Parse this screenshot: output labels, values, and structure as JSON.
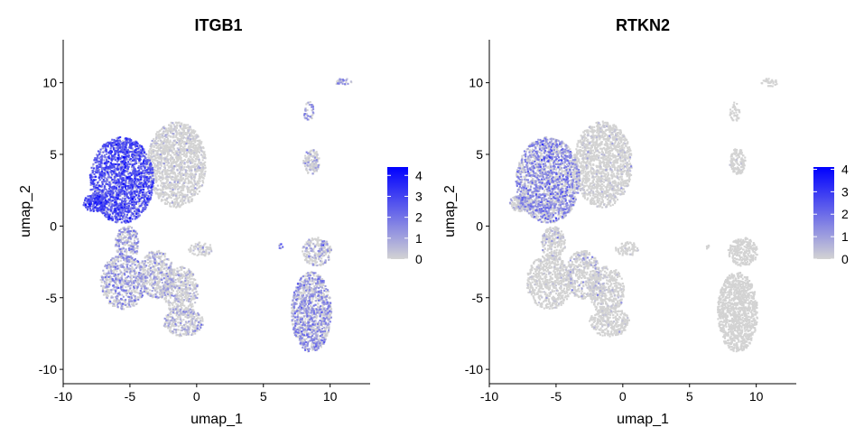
{
  "colors": {
    "low": "#d3d3d3",
    "high": "#0000ff",
    "axis": "#000000",
    "tick_text": "#4d4d4d"
  },
  "chart_data": [
    {
      "type": "scatter",
      "title": "ITGB1",
      "xlabel": "umap_1",
      "ylabel": "umap_2",
      "xlim": [
        -10,
        13
      ],
      "ylim": [
        -11,
        13
      ],
      "xticks": [
        -10,
        -5,
        0,
        5,
        10
      ],
      "yticks": [
        -10,
        -5,
        0,
        5,
        10
      ],
      "legend": {
        "position": "right",
        "ticks": [
          0,
          1,
          2,
          3,
          4
        ],
        "min": 0,
        "max": 4.4
      },
      "clusters": [
        {
          "name": "left-main-left",
          "cx": -5.6,
          "cy": 3.2,
          "rx": 2.4,
          "ry": 3.0,
          "n": 1900,
          "expr": 2.4
        },
        {
          "name": "left-main-right",
          "cx": -1.5,
          "cy": 4.3,
          "rx": 2.2,
          "ry": 3.0,
          "n": 1500,
          "expr": 0.3
        },
        {
          "name": "left-arm",
          "cx": -7.6,
          "cy": 1.6,
          "rx": 0.9,
          "ry": 0.6,
          "n": 200,
          "expr": 2.6
        },
        {
          "name": "mid-strip",
          "cx": -5.2,
          "cy": -1.2,
          "rx": 0.9,
          "ry": 1.2,
          "n": 250,
          "expr": 1.2
        },
        {
          "name": "lower-left",
          "cx": -5.5,
          "cy": -3.9,
          "rx": 1.7,
          "ry": 1.9,
          "n": 650,
          "expr": 1.1
        },
        {
          "name": "lower-mid",
          "cx": -3.0,
          "cy": -3.4,
          "rx": 1.3,
          "ry": 1.7,
          "n": 450,
          "expr": 0.8
        },
        {
          "name": "lower-center",
          "cx": -1.2,
          "cy": -4.5,
          "rx": 1.3,
          "ry": 1.7,
          "n": 450,
          "expr": 0.6
        },
        {
          "name": "bottom",
          "cx": -1.0,
          "cy": -6.7,
          "rx": 1.5,
          "ry": 1.0,
          "n": 300,
          "expr": 0.8
        },
        {
          "name": "small-right",
          "cx": 0.3,
          "cy": -1.6,
          "rx": 0.9,
          "ry": 0.5,
          "n": 80,
          "expr": 0.5
        },
        {
          "name": "right-big",
          "cx": 8.6,
          "cy": -6.0,
          "rx": 1.5,
          "ry": 2.8,
          "n": 1100,
          "expr": 1.3
        },
        {
          "name": "right-mid",
          "cx": 9.0,
          "cy": -1.8,
          "rx": 1.1,
          "ry": 1.0,
          "n": 250,
          "expr": 0.8
        },
        {
          "name": "right-upper",
          "cx": 8.6,
          "cy": 4.5,
          "rx": 0.6,
          "ry": 0.9,
          "n": 130,
          "expr": 0.6
        },
        {
          "name": "right-top",
          "cx": 8.4,
          "cy": 8.0,
          "rx": 0.4,
          "ry": 0.7,
          "n": 40,
          "expr": 1.3
        },
        {
          "name": "far-top",
          "cx": 11.0,
          "cy": 10.0,
          "rx": 0.6,
          "ry": 0.3,
          "n": 30,
          "expr": 1.4
        },
        {
          "name": "tiny-right",
          "cx": 6.3,
          "cy": -1.4,
          "rx": 0.2,
          "ry": 0.2,
          "n": 6,
          "expr": 2.0
        }
      ]
    },
    {
      "type": "scatter",
      "title": "RTKN2",
      "xlabel": "umap_1",
      "ylabel": "umap_2",
      "xlim": [
        -10,
        13
      ],
      "ylim": [
        -11,
        13
      ],
      "xticks": [
        -10,
        -5,
        0,
        5,
        10
      ],
      "yticks": [
        -10,
        -5,
        0,
        5,
        10
      ],
      "legend": {
        "position": "right",
        "ticks": [
          0,
          1,
          2,
          3,
          4
        ],
        "min": 0,
        "max": 4.1
      },
      "clusters": [
        {
          "name": "left-main-left",
          "cx": -5.6,
          "cy": 3.2,
          "rx": 2.4,
          "ry": 3.0,
          "n": 1900,
          "expr": 1.3
        },
        {
          "name": "left-main-right",
          "cx": -1.5,
          "cy": 4.3,
          "rx": 2.2,
          "ry": 3.0,
          "n": 1500,
          "expr": 0.15
        },
        {
          "name": "left-arm",
          "cx": -7.6,
          "cy": 1.6,
          "rx": 0.9,
          "ry": 0.6,
          "n": 200,
          "expr": 0.6
        },
        {
          "name": "mid-strip",
          "cx": -5.2,
          "cy": -1.2,
          "rx": 0.9,
          "ry": 1.2,
          "n": 250,
          "expr": 0.4
        },
        {
          "name": "lower-left",
          "cx": -5.5,
          "cy": -3.9,
          "rx": 1.7,
          "ry": 1.9,
          "n": 650,
          "expr": 0.15
        },
        {
          "name": "lower-mid",
          "cx": -3.0,
          "cy": -3.4,
          "rx": 1.3,
          "ry": 1.7,
          "n": 450,
          "expr": 0.45
        },
        {
          "name": "lower-center",
          "cx": -1.2,
          "cy": -4.5,
          "rx": 1.3,
          "ry": 1.7,
          "n": 450,
          "expr": 0.2
        },
        {
          "name": "bottom",
          "cx": -1.0,
          "cy": -6.7,
          "rx": 1.5,
          "ry": 1.0,
          "n": 300,
          "expr": 0.1
        },
        {
          "name": "small-right",
          "cx": 0.3,
          "cy": -1.6,
          "rx": 0.9,
          "ry": 0.5,
          "n": 80,
          "expr": 0.1
        },
        {
          "name": "right-big",
          "cx": 8.6,
          "cy": -6.0,
          "rx": 1.5,
          "ry": 2.8,
          "n": 1100,
          "expr": 0.0
        },
        {
          "name": "right-mid",
          "cx": 9.0,
          "cy": -1.8,
          "rx": 1.1,
          "ry": 1.0,
          "n": 250,
          "expr": 0.0
        },
        {
          "name": "right-upper",
          "cx": 8.6,
          "cy": 4.5,
          "rx": 0.6,
          "ry": 0.9,
          "n": 130,
          "expr": 0.1
        },
        {
          "name": "right-top",
          "cx": 8.4,
          "cy": 8.0,
          "rx": 0.4,
          "ry": 0.7,
          "n": 40,
          "expr": 0.0
        },
        {
          "name": "far-top",
          "cx": 11.0,
          "cy": 10.0,
          "rx": 0.6,
          "ry": 0.3,
          "n": 30,
          "expr": 0.0
        },
        {
          "name": "tiny-right",
          "cx": 6.3,
          "cy": -1.4,
          "rx": 0.2,
          "ry": 0.2,
          "n": 6,
          "expr": 0.0
        }
      ]
    }
  ]
}
